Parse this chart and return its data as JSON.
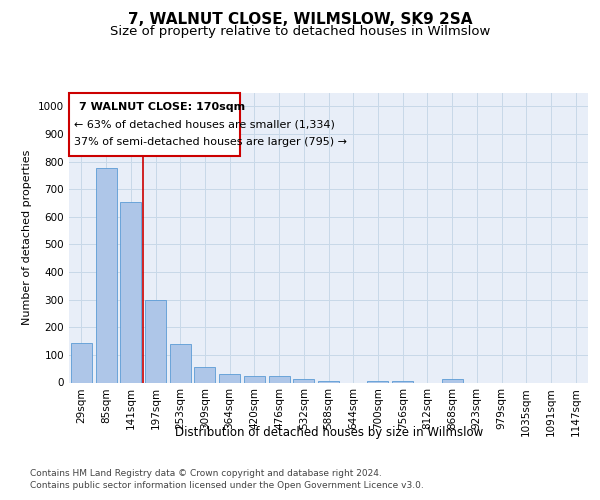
{
  "title": "7, WALNUT CLOSE, WILMSLOW, SK9 2SA",
  "subtitle": "Size of property relative to detached houses in Wilmslow",
  "xlabel": "Distribution of detached houses by size in Wilmslow",
  "ylabel": "Number of detached properties",
  "categories": [
    "29sqm",
    "85sqm",
    "141sqm",
    "197sqm",
    "253sqm",
    "309sqm",
    "364sqm",
    "420sqm",
    "476sqm",
    "532sqm",
    "588sqm",
    "644sqm",
    "700sqm",
    "756sqm",
    "812sqm",
    "868sqm",
    "923sqm",
    "979sqm",
    "1035sqm",
    "1091sqm",
    "1147sqm"
  ],
  "values": [
    143,
    778,
    655,
    297,
    138,
    57,
    30,
    23,
    22,
    14,
    7,
    0,
    5,
    5,
    0,
    12,
    0,
    0,
    0,
    0,
    0
  ],
  "bar_color": "#aec6e8",
  "bar_edge_color": "#5b9bd5",
  "vline_x_index": 2.5,
  "vline_color": "#cc0000",
  "annotation_line1": "7 WALNUT CLOSE: 170sqm",
  "annotation_line2": "← 63% of detached houses are smaller (1,334)",
  "annotation_line3": "37% of semi-detached houses are larger (795) →",
  "box_edge_color": "#cc0000",
  "grid_color": "#c8d8e8",
  "background_color": "#e8eef8",
  "footer_line1": "Contains HM Land Registry data © Crown copyright and database right 2024.",
  "footer_line2": "Contains public sector information licensed under the Open Government Licence v3.0.",
  "ylim": [
    0,
    1050
  ],
  "yticks": [
    0,
    100,
    200,
    300,
    400,
    500,
    600,
    700,
    800,
    900,
    1000
  ],
  "title_fontsize": 11,
  "subtitle_fontsize": 9.5,
  "xlabel_fontsize": 8.5,
  "ylabel_fontsize": 8,
  "tick_fontsize": 7.5,
  "footer_fontsize": 6.5,
  "annotation_fontsize": 8
}
